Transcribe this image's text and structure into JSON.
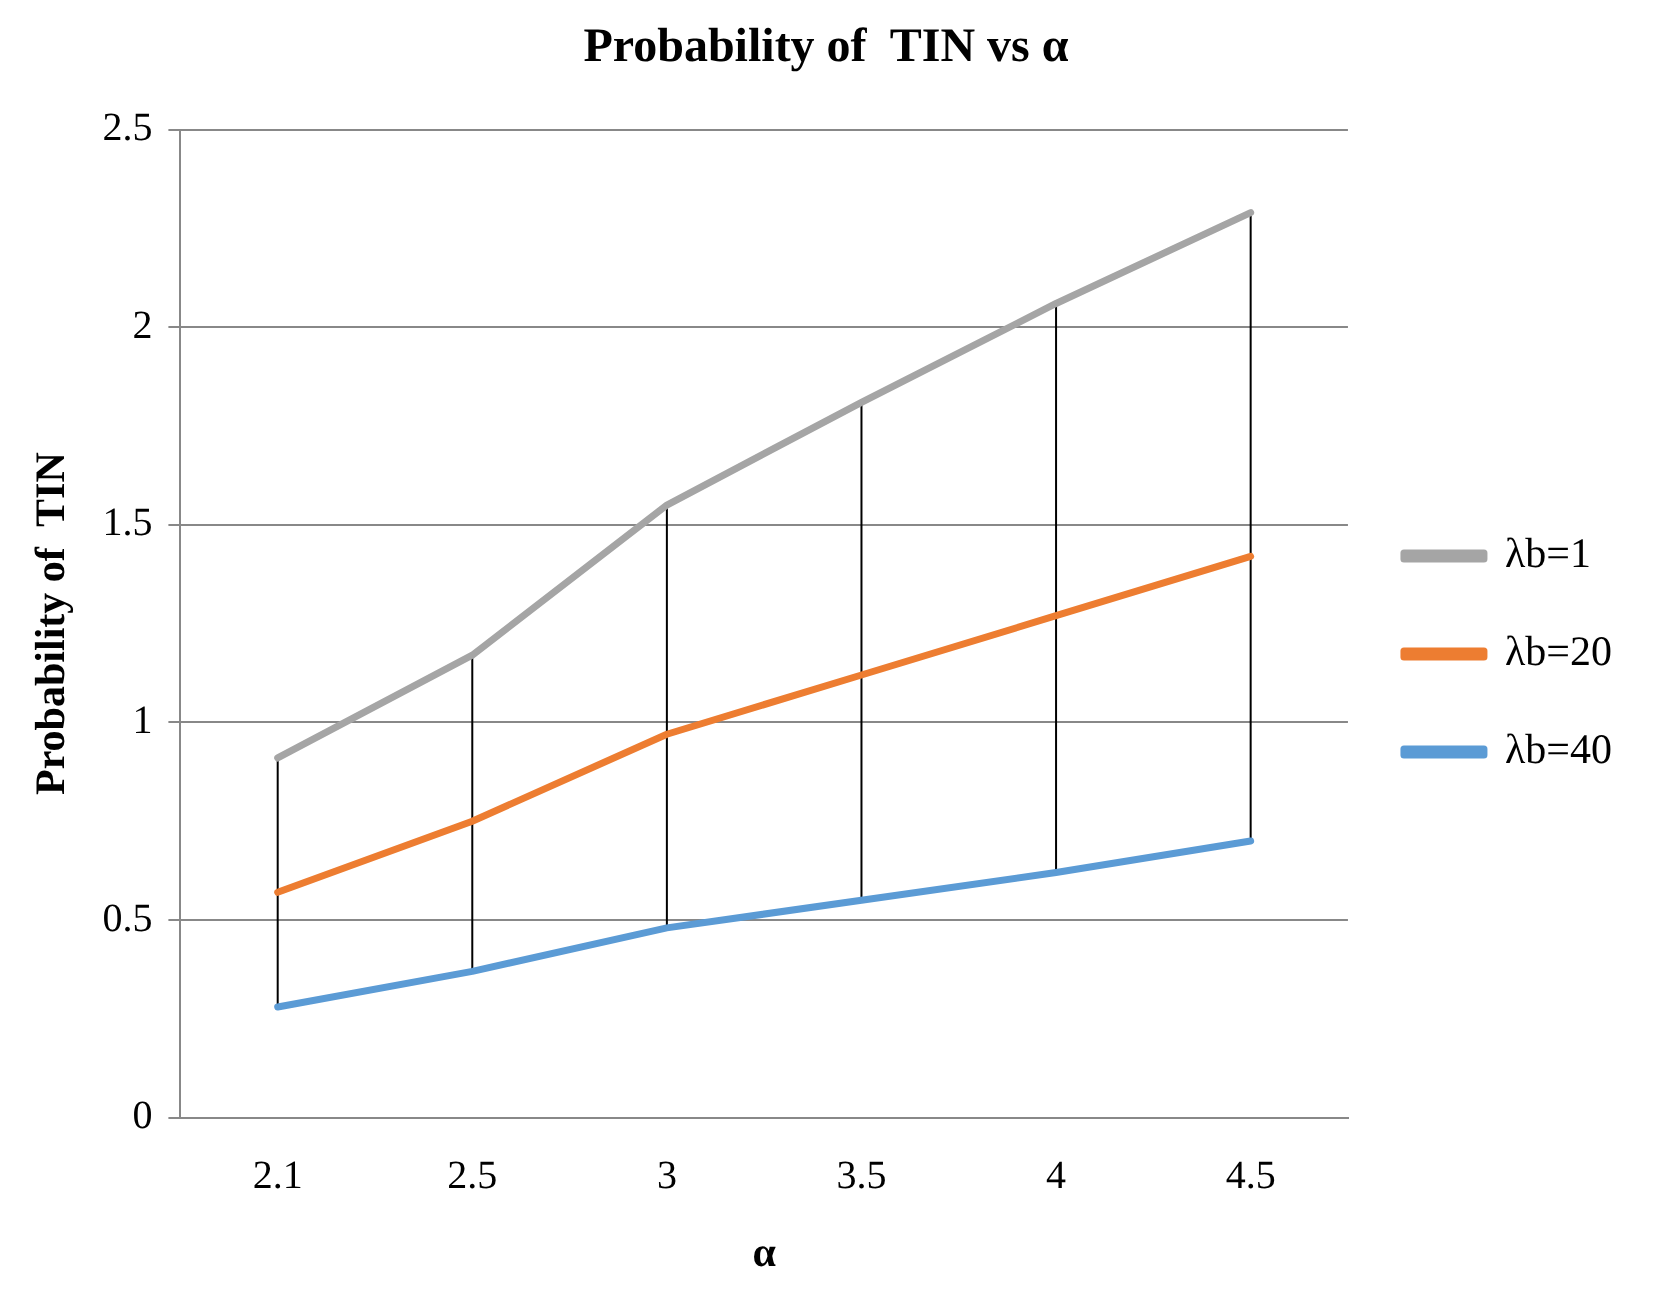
{
  "chart_data": {
    "type": "line",
    "title": "Probability of  TIN vs α",
    "xlabel": "α",
    "ylabel": "Probability of  TIN",
    "categories": [
      "2.1",
      "2.5",
      "3",
      "3.5",
      "4",
      "4.5"
    ],
    "series": [
      {
        "name": "λb=1",
        "color": "#a5a5a5",
        "values": [
          0.91,
          1.17,
          1.55,
          1.81,
          2.06,
          2.29
        ]
      },
      {
        "name": "λb=20",
        "color": "#ed7d31",
        "values": [
          0.57,
          0.75,
          0.97,
          1.12,
          1.27,
          1.42
        ],
        "errors": [
          [
            0.28,
            0.91
          ],
          [
            0.37,
            1.17
          ],
          [
            0.48,
            1.55
          ],
          [
            0.55,
            1.81
          ],
          [
            0.62,
            2.06
          ],
          [
            0.7,
            2.29
          ]
        ]
      },
      {
        "name": "λb=40",
        "color": "#5b9bd5",
        "values": [
          0.28,
          0.37,
          0.48,
          0.55,
          0.62,
          0.7
        ]
      }
    ],
    "ylim": [
      0,
      2.5
    ],
    "yticks": [
      0,
      0.5,
      1,
      1.5,
      2,
      2.5
    ],
    "grid": "y",
    "legend": "right",
    "marker": "none",
    "line_style": "solid"
  }
}
